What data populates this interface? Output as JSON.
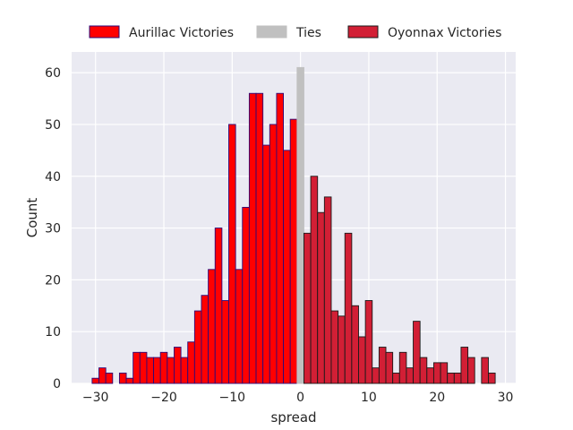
{
  "chart_data": {
    "type": "bar",
    "subtype": "histogram",
    "xlabel": "spread",
    "ylabel": "Count",
    "xlim": [
      -33.5,
      31.5
    ],
    "ylim": [
      0,
      64
    ],
    "xticks": [
      -30,
      -20,
      -10,
      0,
      10,
      20,
      30
    ],
    "xtick_labels": [
      "−30",
      "−20",
      "−10",
      "0",
      "10",
      "20",
      "30"
    ],
    "yticks": [
      0,
      10,
      20,
      30,
      40,
      50,
      60
    ],
    "ytick_labels": [
      "0",
      "10",
      "20",
      "30",
      "40",
      "50",
      "60"
    ],
    "grid": true,
    "legend_placement": "top-center",
    "bin_width": 1,
    "series": [
      {
        "name": "Aurillac Victories",
        "fill": "#ff0000",
        "edge": "#2b0a7a",
        "x": [
          -30,
          -29,
          -28,
          -27,
          -26,
          -25,
          -24,
          -23,
          -22,
          -21,
          -20,
          -19,
          -18,
          -17,
          -16,
          -15,
          -14,
          -13,
          -12,
          -11,
          -10,
          -9,
          -8,
          -7,
          -6,
          -5,
          -4,
          -3,
          -2,
          -1
        ],
        "values": [
          1,
          3,
          2,
          0,
          2,
          1,
          6,
          6,
          5,
          5,
          6,
          5,
          7,
          5,
          8,
          14,
          17,
          22,
          30,
          16,
          50,
          22,
          34,
          56,
          56,
          46,
          50,
          56,
          45,
          51
        ]
      },
      {
        "name": "Ties",
        "fill": "#c0c0c0",
        "edge": "#c0c0c0",
        "x": [
          0
        ],
        "values": [
          61
        ]
      },
      {
        "name": "Oyonnax Victories",
        "fill": "#d21f35",
        "edge": "#1a1a1a",
        "x": [
          1,
          2,
          3,
          4,
          5,
          6,
          7,
          8,
          9,
          10,
          11,
          12,
          13,
          14,
          15,
          16,
          17,
          18,
          19,
          20,
          21,
          22,
          23,
          24,
          25,
          26,
          27,
          28
        ],
        "values": [
          29,
          40,
          33,
          36,
          14,
          13,
          29,
          15,
          9,
          16,
          3,
          7,
          6,
          2,
          6,
          3,
          12,
          5,
          3,
          4,
          4,
          2,
          2,
          7,
          5,
          0,
          5,
          2
        ]
      }
    ]
  }
}
